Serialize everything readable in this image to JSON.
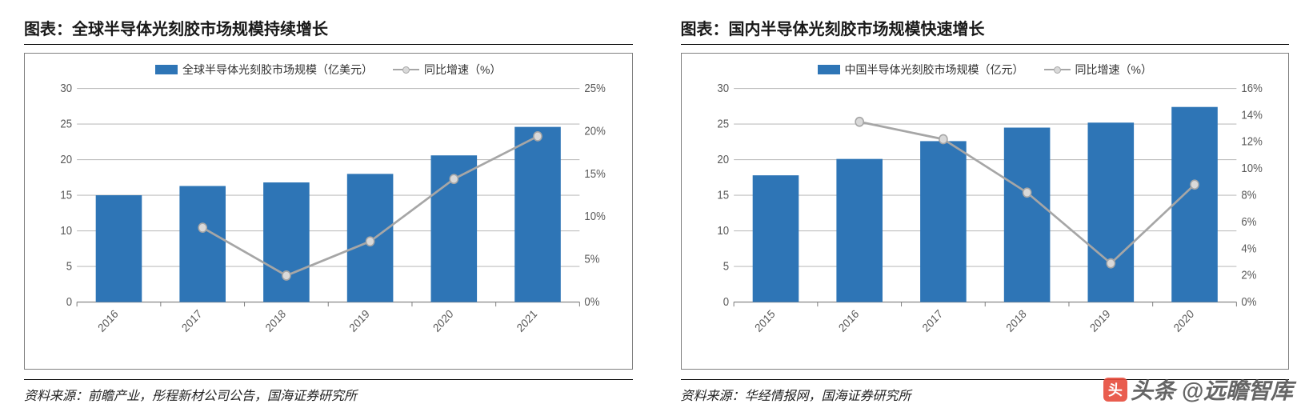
{
  "left": {
    "title": "图表：全球半导体光刻胶市场规模持续增长",
    "legend_bar": "全球半导体光刻胶市场规模（亿美元）",
    "legend_line": "同比增速（%）",
    "categories": [
      "2016",
      "2017",
      "2018",
      "2019",
      "2020",
      "2021"
    ],
    "bar_values": [
      15.0,
      16.3,
      16.8,
      18.0,
      20.6,
      24.6
    ],
    "line_values": [
      null,
      8.7,
      3.1,
      7.1,
      14.4,
      19.4
    ],
    "y_left": {
      "min": 0,
      "max": 30,
      "step": 5,
      "labels": [
        "0",
        "5",
        "10",
        "15",
        "20",
        "25",
        "30"
      ]
    },
    "y_right": {
      "min": 0,
      "max": 25,
      "step": 5,
      "labels": [
        "0%",
        "5%",
        "10%",
        "15%",
        "20%",
        "25%"
      ]
    },
    "bar_color": "#2e75b6",
    "line_color": "#a6a6a6",
    "marker_fill": "#d9d9d9",
    "grid_color": "#bfbfbf",
    "axis_color": "#808080",
    "text_color": "#595959",
    "bar_width": 0.55,
    "source": "资料来源：前瞻产业，彤程新材公司公告，国海证券研究所"
  },
  "right": {
    "title": "图表：国内半导体光刻胶市场规模快速增长",
    "legend_bar": "中国半导体光刻胶市场规模（亿元）",
    "legend_line": "同比增速（%）",
    "categories": [
      "2015",
      "2016",
      "2017",
      "2018",
      "2019",
      "2020"
    ],
    "bar_values": [
      17.8,
      20.1,
      22.6,
      24.5,
      25.2,
      27.4
    ],
    "line_values": [
      null,
      13.5,
      12.2,
      8.2,
      2.9,
      8.8
    ],
    "y_left": {
      "min": 0,
      "max": 30,
      "step": 5,
      "labels": [
        "0",
        "5",
        "10",
        "15",
        "20",
        "25",
        "30"
      ]
    },
    "y_right": {
      "min": 0,
      "max": 16,
      "step": 2,
      "labels": [
        "0%",
        "2%",
        "4%",
        "6%",
        "8%",
        "10%",
        "12%",
        "14%",
        "16%"
      ]
    },
    "bar_color": "#2e75b6",
    "line_color": "#a6a6a6",
    "marker_fill": "#d9d9d9",
    "grid_color": "#bfbfbf",
    "axis_color": "#808080",
    "text_color": "#595959",
    "bar_width": 0.55,
    "source": "资料来源：华经情报网，国海证券研究所"
  },
  "watermark": "头条 @远瞻智库"
}
